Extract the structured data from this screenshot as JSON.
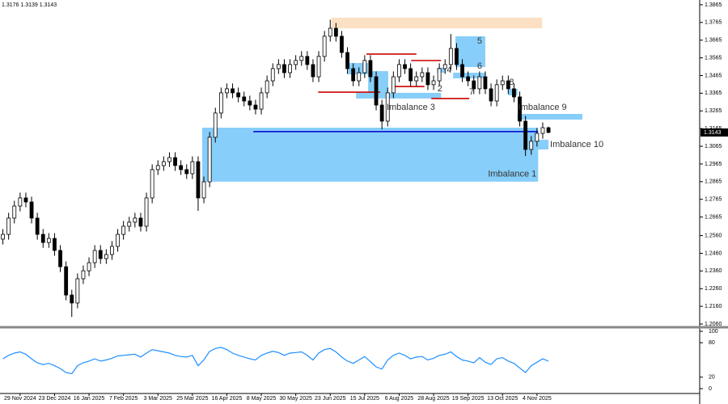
{
  "chart_data": [
    {
      "type": "candlestick",
      "categories": [
        null,
        null,
        null,
        "29 Nov 2024",
        null,
        null,
        null,
        null,
        null,
        "23 Dec 2024",
        null,
        null,
        null,
        null,
        null,
        "16 Jan 2025",
        null,
        null,
        null,
        null,
        null,
        "7 Feb 2025",
        null,
        null,
        null,
        null,
        null,
        "3 Mar 2025",
        null,
        null,
        null,
        null,
        null,
        "25 Mar 2025",
        null,
        null,
        null,
        null,
        null,
        "16 Apr 2025",
        null,
        null,
        null,
        null,
        null,
        "8 May 2025",
        null,
        null,
        null,
        null,
        null,
        "30 May 2025",
        null,
        null,
        null,
        null,
        null,
        "23 Jun 2025",
        null,
        null,
        null,
        null,
        null,
        "15 Jul 2025",
        null,
        null,
        null,
        null,
        null,
        "6 Aug 2025",
        null,
        null,
        null,
        null,
        null,
        "28 Aug 2025",
        null,
        null,
        null,
        null,
        null,
        "19 Sep 2025",
        null,
        null,
        null,
        null,
        null,
        "13 Oct 2025",
        null,
        null,
        null,
        null,
        null,
        "4 Nov 2025",
        null,
        null
      ],
      "open": [
        1.254,
        1.2567,
        1.2659,
        1.2727,
        1.2773,
        1.275,
        1.2659,
        1.2567,
        1.2521,
        1.2544,
        1.2476,
        1.2384,
        1.2224,
        1.2179,
        1.2316,
        1.2361,
        1.2407,
        1.2476,
        1.243,
        1.2453,
        1.2499,
        1.2567,
        1.2613,
        1.2636,
        1.2659,
        1.2613,
        1.2773,
        1.2933,
        1.2956,
        1.2978,
        1.3001,
        1.2956,
        1.2933,
        1.291,
        1.2978,
        1.2773,
        1.2864,
        1.3116,
        1.3253,
        1.3367,
        1.339,
        1.3367,
        1.3344,
        1.3321,
        1.3298,
        1.3275,
        1.3367,
        1.3435,
        1.3504,
        1.3527,
        1.3481,
        1.3527,
        1.355,
        1.3573,
        1.3527,
        1.3458,
        1.3573,
        1.3687,
        1.3732,
        1.3687,
        1.3595,
        1.3504,
        1.3435,
        1.3481,
        1.355,
        1.3458,
        1.3298,
        1.3207,
        1.3367,
        1.3458,
        1.3527,
        1.3504,
        1.3435,
        1.3458,
        1.3481,
        1.3413,
        1.3435,
        1.3504,
        1.3527,
        1.3618,
        1.3527,
        1.3458,
        1.3435,
        1.339,
        1.3458,
        1.339,
        1.3321,
        1.3413,
        1.3435,
        1.339,
        1.3344,
        1.3207,
        1.3047,
        1.3093,
        1.3138,
        1.317
      ],
      "high": [
        1.2597,
        1.2689,
        1.2757,
        1.2803,
        1.2803,
        1.278,
        1.2689,
        1.2597,
        1.2574,
        1.2574,
        1.2506,
        1.2414,
        1.2254,
        1.2346,
        1.2391,
        1.2437,
        1.2506,
        1.2506,
        1.2483,
        1.2529,
        1.2597,
        1.2643,
        1.2666,
        1.2689,
        1.2689,
        1.2803,
        1.2963,
        1.2986,
        1.3008,
        1.3031,
        1.3031,
        1.2986,
        1.2963,
        1.3008,
        1.3008,
        1.2894,
        1.3146,
        1.3283,
        1.3397,
        1.342,
        1.342,
        1.3397,
        1.3374,
        1.3351,
        1.3328,
        1.3397,
        1.3465,
        1.3534,
        1.3557,
        1.3557,
        1.3557,
        1.358,
        1.3603,
        1.3603,
        1.3557,
        1.3603,
        1.3717,
        1.378,
        1.3762,
        1.3717,
        1.3625,
        1.3534,
        1.3511,
        1.358,
        1.358,
        1.3488,
        1.3328,
        1.3397,
        1.3488,
        1.3557,
        1.3557,
        1.3534,
        1.3488,
        1.3511,
        1.3511,
        1.3465,
        1.3534,
        1.3557,
        1.37,
        1.3648,
        1.3557,
        1.3488,
        1.3465,
        1.3488,
        1.3488,
        1.342,
        1.3443,
        1.3465,
        1.3465,
        1.342,
        1.3374,
        1.3237,
        1.3123,
        1.3168,
        1.32,
        1.3176
      ],
      "low": [
        1.251,
        1.2537,
        1.2629,
        1.2697,
        1.272,
        1.2629,
        1.2537,
        1.2491,
        1.2491,
        1.2446,
        1.2354,
        1.2194,
        1.21,
        1.2149,
        1.2286,
        1.2331,
        1.2377,
        1.24,
        1.24,
        1.2423,
        1.2469,
        1.2537,
        1.2583,
        1.2606,
        1.2583,
        1.2583,
        1.2743,
        1.2903,
        1.2926,
        1.2948,
        1.2926,
        1.2903,
        1.288,
        1.288,
        1.27,
        1.2743,
        1.2834,
        1.3086,
        1.3223,
        1.3337,
        1.3337,
        1.3314,
        1.3291,
        1.3268,
        1.3245,
        1.3245,
        1.3337,
        1.3405,
        1.3474,
        1.3451,
        1.3451,
        1.3497,
        1.352,
        1.3497,
        1.3428,
        1.3428,
        1.3543,
        1.3657,
        1.3657,
        1.3565,
        1.3474,
        1.3405,
        1.3405,
        1.3451,
        1.3428,
        1.3268,
        1.3161,
        1.3177,
        1.3337,
        1.3428,
        1.3474,
        1.3405,
        1.3405,
        1.3428,
        1.3383,
        1.3383,
        1.3405,
        1.3474,
        1.3497,
        1.3497,
        1.3428,
        1.3405,
        1.336,
        1.336,
        1.336,
        1.3291,
        1.3291,
        1.3383,
        1.336,
        1.3314,
        1.3177,
        1.301,
        1.3017,
        1.3063,
        1.3108,
        1.3139
      ],
      "close": [
        1.2567,
        1.2659,
        1.2727,
        1.2773,
        1.275,
        1.2659,
        1.2567,
        1.2521,
        1.2544,
        1.2476,
        1.2384,
        1.2224,
        1.2179,
        1.2316,
        1.2361,
        1.2407,
        1.2476,
        1.243,
        1.2453,
        1.2499,
        1.2567,
        1.2613,
        1.2636,
        1.2659,
        1.2613,
        1.2773,
        1.2933,
        1.2956,
        1.2978,
        1.3001,
        1.2956,
        1.2933,
        1.291,
        1.2978,
        1.2773,
        1.2864,
        1.3116,
        1.3253,
        1.3367,
        1.339,
        1.3367,
        1.3344,
        1.3321,
        1.3298,
        1.3275,
        1.3367,
        1.3435,
        1.3504,
        1.3527,
        1.3481,
        1.3527,
        1.355,
        1.3573,
        1.3527,
        1.3458,
        1.3573,
        1.3687,
        1.3732,
        1.3687,
        1.3595,
        1.3504,
        1.3435,
        1.3481,
        1.355,
        1.3458,
        1.3298,
        1.3207,
        1.3367,
        1.3458,
        1.3527,
        1.3504,
        1.3435,
        1.3458,
        1.3481,
        1.3413,
        1.3435,
        1.3504,
        1.3527,
        1.3618,
        1.3527,
        1.3458,
        1.3435,
        1.339,
        1.3458,
        1.339,
        1.3321,
        1.3413,
        1.3435,
        1.339,
        1.3344,
        1.3207,
        1.3047,
        1.3093,
        1.3138,
        1.317,
        1.3143
      ],
      "ylim": [
        1.2051,
        1.3892
      ],
      "yticks": [
        1.3865,
        1.3765,
        1.3665,
        1.3565,
        1.3465,
        1.3365,
        1.3265,
        1.3165,
        1.3065,
        1.2965,
        1.2865,
        1.2765,
        1.2665,
        {
          "value": 1.256,
          "label": "1.2560"
        },
        {
          "value": 1.246,
          "label": "1.2460"
        },
        {
          "value": 1.236,
          "label": "1.2360"
        },
        {
          "value": 1.226,
          "label": "1.2260"
        },
        {
          "value": 1.216,
          "label": "1.2160"
        },
        {
          "value": 1.206,
          "label": "1.2060"
        }
      ],
      "zones": [
        {
          "x": [
            57.2,
            93.9
          ],
          "y": [
            1.3732,
            1.3792
          ],
          "color": "#fbe0c4"
        },
        {
          "label": "Imbalance 1",
          "x": [
            34.7,
            93.2
          ],
          "y": [
            1.2865,
            1.317
          ],
          "color": "#87cefa"
        },
        {
          "label": "Imbalance 3",
          "x": [
            63.6,
            67.1
          ],
          "y": [
            1.3353,
            1.349
          ],
          "color": "#87cefa"
        },
        {
          "x": [
            60.1,
            63.6
          ],
          "y": [
            1.3472,
            1.3536
          ],
          "color": "#87cefa"
        },
        {
          "x": [
            61.5,
            76.3
          ],
          "y": [
            1.3335,
            1.3367
          ],
          "color": "#87cefa"
        },
        {
          "label": "4",
          "x": [
            75.6,
            77.0
          ],
          "y": [
            1.3481,
            1.3509
          ],
          "color": "#87cefa"
        },
        {
          "label": "5",
          "x": [
            78.8,
            84.0
          ],
          "y": [
            1.3513,
            1.3687
          ],
          "color": "#87cefa"
        },
        {
          "label": "6",
          "x": [
            78.4,
            84.0
          ],
          "y": [
            1.3449,
            1.3481
          ],
          "color": "#87cefa"
        },
        {
          "label": "8",
          "x": [
            88.0,
            89.6
          ],
          "y": [
            1.3353,
            1.339
          ],
          "color": "#87cefa"
        },
        {
          "label": "Imbalance 9",
          "x": [
            89.6,
            100.9
          ],
          "y": [
            1.3216,
            1.3248
          ],
          "color": "#87cefa"
        },
        {
          "label": "Imbalance 10",
          "x": [
            92.7,
            95.0
          ],
          "y": [
            1.3047,
            1.3102
          ],
          "color": "#87cefa"
        }
      ],
      "levels": [
        {
          "value": 1.3371,
          "x": [
            54.9,
            65.7
          ],
          "color": "#cc0000"
        },
        {
          "value": 1.3586,
          "x": [
            63.3,
            72.0
          ],
          "color": "#cc0000"
        },
        {
          "value": 1.355,
          "x": [
            71.1,
            76.3
          ],
          "color": "#cc0000"
        },
        {
          "label": "2",
          "value": 1.3403,
          "x": [
            67.8,
            73.4
          ],
          "color": "#cc0000"
        },
        {
          "label": "7",
          "value": 1.3335,
          "x": [
            74.6,
            81.2
          ],
          "color": "#cc0000"
        },
        {
          "value": 1.3148,
          "x": [
            43.6,
            93.2
          ],
          "color": "#0000cc"
        }
      ]
    },
    {
      "type": "line",
      "color": "#1e90ff",
      "values": [
        52,
        58,
        62,
        64,
        60,
        52,
        45,
        42,
        44,
        40,
        35,
        28,
        26,
        40,
        45,
        48,
        52,
        48,
        50,
        53,
        57,
        58,
        59,
        60,
        55,
        62,
        68,
        66,
        64,
        62,
        58,
        56,
        55,
        58,
        40,
        50,
        65,
        70,
        72,
        68,
        62,
        58,
        55,
        52,
        50,
        58,
        62,
        65,
        63,
        58,
        62,
        63,
        64,
        58,
        50,
        62,
        68,
        70,
        64,
        55,
        48,
        44,
        50,
        56,
        47,
        38,
        34,
        50,
        58,
        62,
        58,
        52,
        55,
        56,
        50,
        53,
        58,
        60,
        64,
        56,
        50,
        48,
        45,
        54,
        46,
        42,
        52,
        54,
        48,
        44,
        36,
        28,
        40,
        46,
        52,
        48
      ],
      "ylim": [
        -12.7,
        104.2
      ],
      "yticks": [
        0,
        20,
        80,
        100
      ]
    }
  ]
}
